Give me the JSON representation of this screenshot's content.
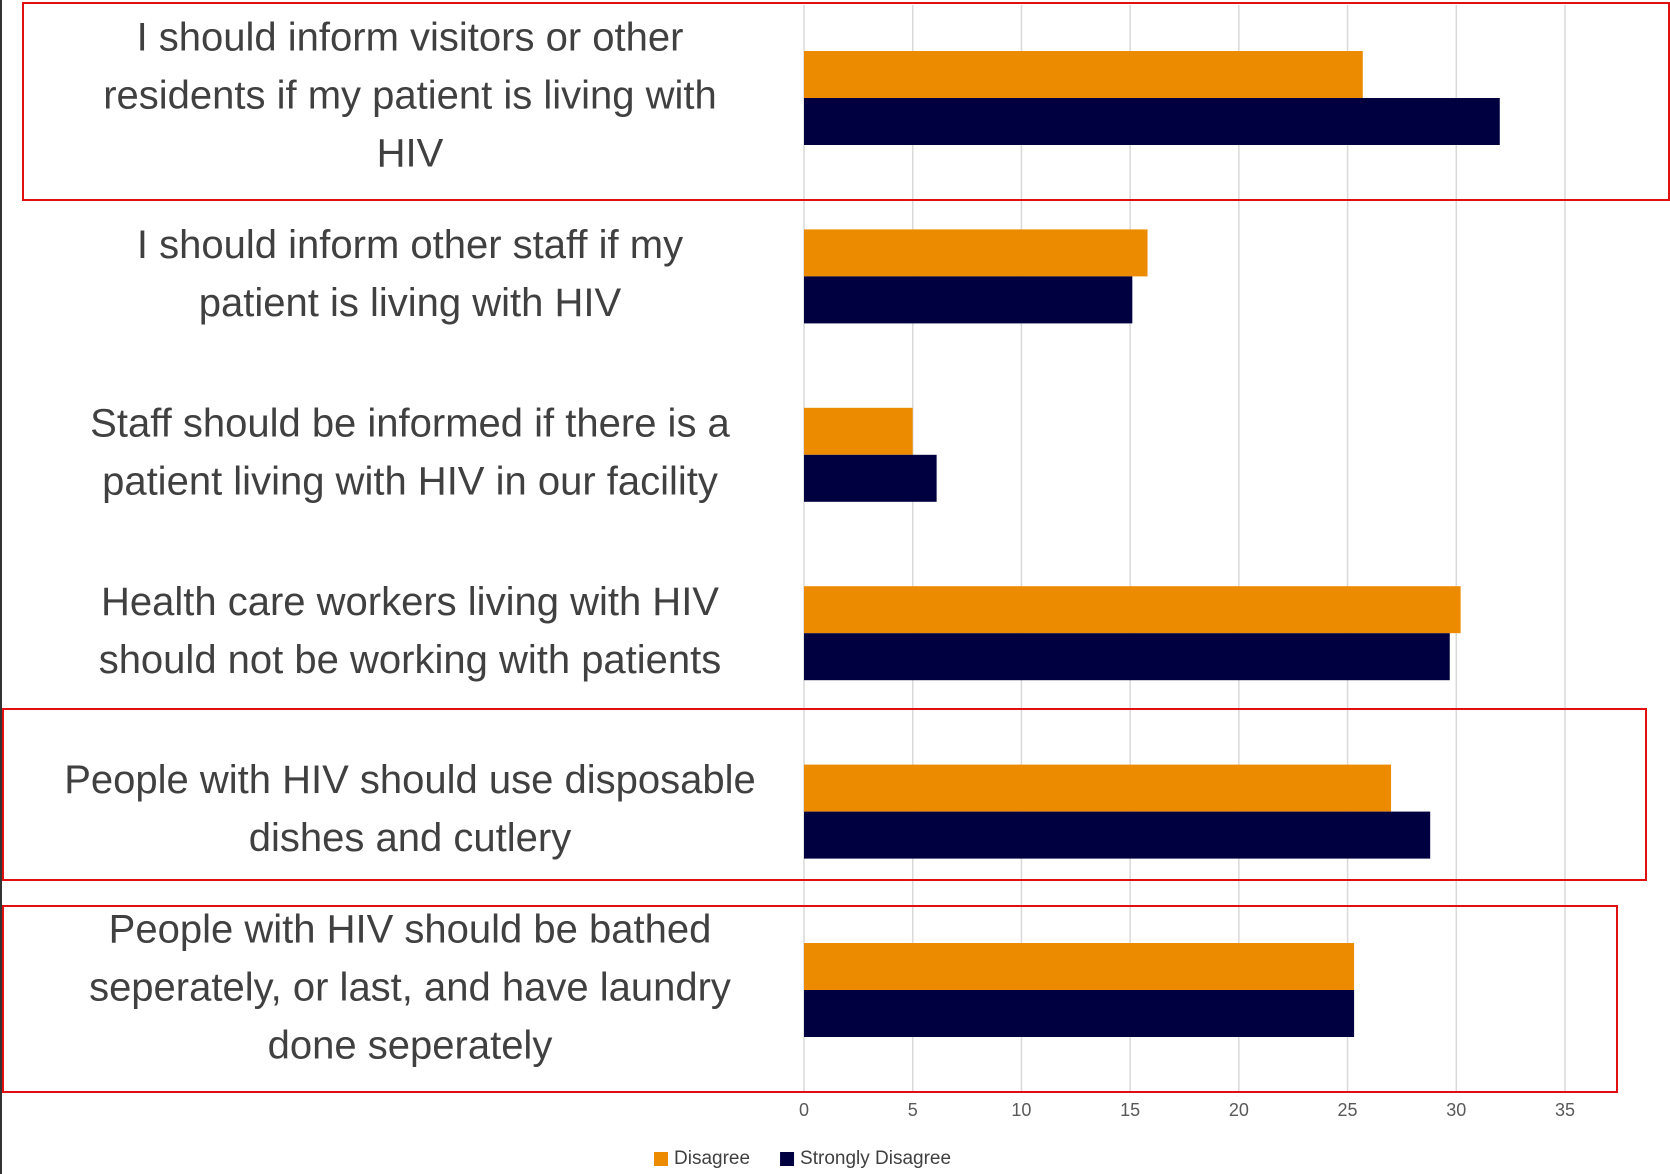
{
  "chart_data": {
    "type": "hbar",
    "categories": [
      [
        "I should inform visitors or other",
        "residents if my patient is living with",
        "HIV"
      ],
      [
        "I should inform other staff if my",
        "patient is living with HIV"
      ],
      [
        "Staff should be informed if there is a",
        "patient living with HIV in our facility"
      ],
      [
        "Health care workers living with HIV",
        "should not be working with patients"
      ],
      [
        "People with HIV should use disposable",
        "dishes and cutlery"
      ],
      [
        "People with HIV should be bathed",
        "seperately, or last, and have laundry",
        "done seperately"
      ]
    ],
    "series": [
      {
        "name": "Disagree",
        "color": "#ed8b00",
        "values": [
          25.7,
          15.8,
          5.0,
          30.2,
          27.0,
          25.3
        ]
      },
      {
        "name": "Strongly Disagree",
        "color": "#000040",
        "values": [
          32.0,
          15.1,
          6.1,
          29.7,
          28.8,
          25.3
        ]
      }
    ],
    "xlim": [
      0,
      35
    ],
    "xticks": [
      0,
      5,
      10,
      15,
      20,
      25,
      30,
      35
    ],
    "grid": true,
    "legend": "bottom"
  }
}
